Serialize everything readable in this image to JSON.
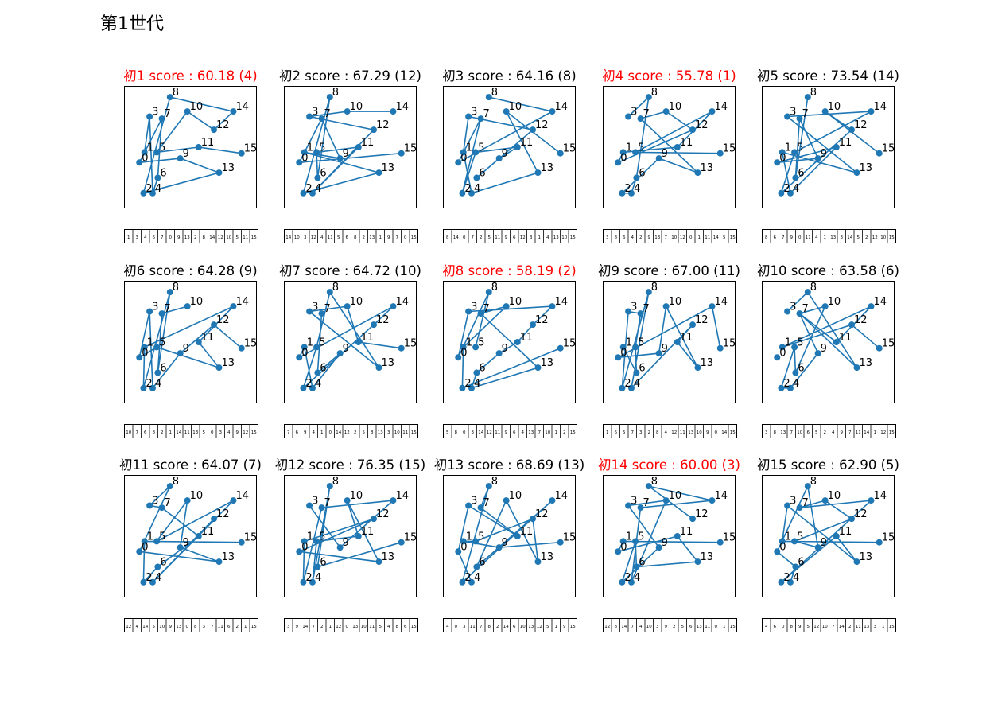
{
  "title": "第1世代",
  "chart_data": {
    "type": "scatter",
    "node_color": "#1f77b4",
    "highlight_color": "#ff0000",
    "nodes": [
      {
        "id": "0",
        "x": 0.0,
        "y": 0.1
      },
      {
        "id": "1",
        "x": 0.05,
        "y": 0.2
      },
      {
        "id": "2",
        "x": 0.04,
        "y": -0.2
      },
      {
        "id": "3",
        "x": 0.1,
        "y": 0.55
      },
      {
        "id": "4",
        "x": 0.13,
        "y": -0.2
      },
      {
        "id": "5",
        "x": 0.17,
        "y": 0.2
      },
      {
        "id": "6",
        "x": 0.18,
        "y": -0.05
      },
      {
        "id": "7",
        "x": 0.22,
        "y": 0.53
      },
      {
        "id": "8",
        "x": 0.3,
        "y": 0.74
      },
      {
        "id": "9",
        "x": 0.4,
        "y": 0.14
      },
      {
        "id": "10",
        "x": 0.47,
        "y": 0.6
      },
      {
        "id": "11",
        "x": 0.58,
        "y": 0.25
      },
      {
        "id": "12",
        "x": 0.73,
        "y": 0.42
      },
      {
        "id": "13",
        "x": 0.78,
        "y": 0.0
      },
      {
        "id": "14",
        "x": 0.92,
        "y": 0.6
      },
      {
        "id": "15",
        "x": 1.0,
        "y": 0.19
      }
    ],
    "individuals": [
      {
        "title": "初1 score : 60.18 (4)",
        "highlight": true,
        "tour": [
          1,
          3,
          4,
          6,
          7,
          0,
          9,
          13,
          2,
          8,
          14,
          12,
          10,
          5,
          11,
          15
        ]
      },
      {
        "title": "初2 score : 67.29 (12)",
        "highlight": false,
        "tour": [
          14,
          10,
          3,
          12,
          4,
          11,
          5,
          6,
          8,
          2,
          13,
          1,
          9,
          7,
          0,
          15
        ]
      },
      {
        "title": "初3 score : 64.16 (8)",
        "highlight": false,
        "tour": [
          8,
          14,
          0,
          7,
          2,
          5,
          11,
          9,
          6,
          12,
          3,
          1,
          4,
          13,
          10,
          15
        ]
      },
      {
        "title": "初4 score : 55.78 (1)",
        "highlight": true,
        "tour": [
          3,
          8,
          6,
          4,
          2,
          9,
          13,
          7,
          10,
          12,
          0,
          1,
          11,
          14,
          5,
          15
        ]
      },
      {
        "title": "初5 score : 73.54 (14)",
        "highlight": false,
        "tour": [
          8,
          6,
          7,
          9,
          0,
          11,
          4,
          1,
          13,
          3,
          14,
          5,
          2,
          12,
          10,
          15
        ]
      },
      {
        "title": "初6 score : 64.28 (9)",
        "highlight": false,
        "tour": [
          10,
          7,
          6,
          8,
          2,
          1,
          14,
          11,
          13,
          5,
          0,
          3,
          4,
          9,
          12,
          15
        ]
      },
      {
        "title": "初7 score : 64.72 (10)",
        "highlight": false,
        "tour": [
          7,
          6,
          9,
          4,
          1,
          0,
          14,
          12,
          2,
          5,
          8,
          13,
          3,
          10,
          11,
          15
        ]
      },
      {
        "title": "初8 score : 58.19 (2)",
        "highlight": true,
        "tour": [
          5,
          8,
          0,
          3,
          14,
          12,
          11,
          9,
          6,
          4,
          13,
          7,
          10,
          1,
          2,
          15
        ]
      },
      {
        "title": "初9 score : 67.00 (11)",
        "highlight": false,
        "tour": [
          1,
          6,
          5,
          7,
          3,
          2,
          8,
          4,
          12,
          11,
          13,
          10,
          9,
          0,
          14,
          15
        ]
      },
      {
        "title": "初10 score : 63.58 (6)",
        "highlight": false,
        "tour": [
          3,
          8,
          13,
          7,
          10,
          6,
          5,
          2,
          4,
          9,
          7,
          11,
          14,
          1,
          12,
          15
        ]
      },
      {
        "title": "初11 score : 64.07 (7)",
        "highlight": false,
        "tour": [
          12,
          4,
          14,
          5,
          10,
          9,
          13,
          0,
          8,
          3,
          7,
          11,
          6,
          2,
          1,
          15
        ]
      },
      {
        "title": "初12 score : 76.35 (15)",
        "highlight": false,
        "tour": [
          3,
          9,
          14,
          7,
          2,
          1,
          12,
          0,
          13,
          10,
          11,
          5,
          4,
          8,
          6,
          15
        ]
      },
      {
        "title": "初13 score : 68.69 (13)",
        "highlight": false,
        "tour": [
          4,
          0,
          3,
          11,
          7,
          8,
          2,
          14,
          6,
          10,
          13,
          12,
          5,
          1,
          9,
          15
        ]
      },
      {
        "title": "初14 score : 60.00 (3)",
        "highlight": true,
        "tour": [
          12,
          8,
          14,
          7,
          4,
          10,
          3,
          9,
          2,
          5,
          6,
          13,
          11,
          0,
          1,
          15
        ]
      },
      {
        "title": "初15 score : 62.90 (5)",
        "highlight": false,
        "tour": [
          4,
          6,
          0,
          8,
          9,
          5,
          12,
          10,
          7,
          14,
          2,
          11,
          13,
          3,
          1,
          15
        ]
      }
    ]
  }
}
